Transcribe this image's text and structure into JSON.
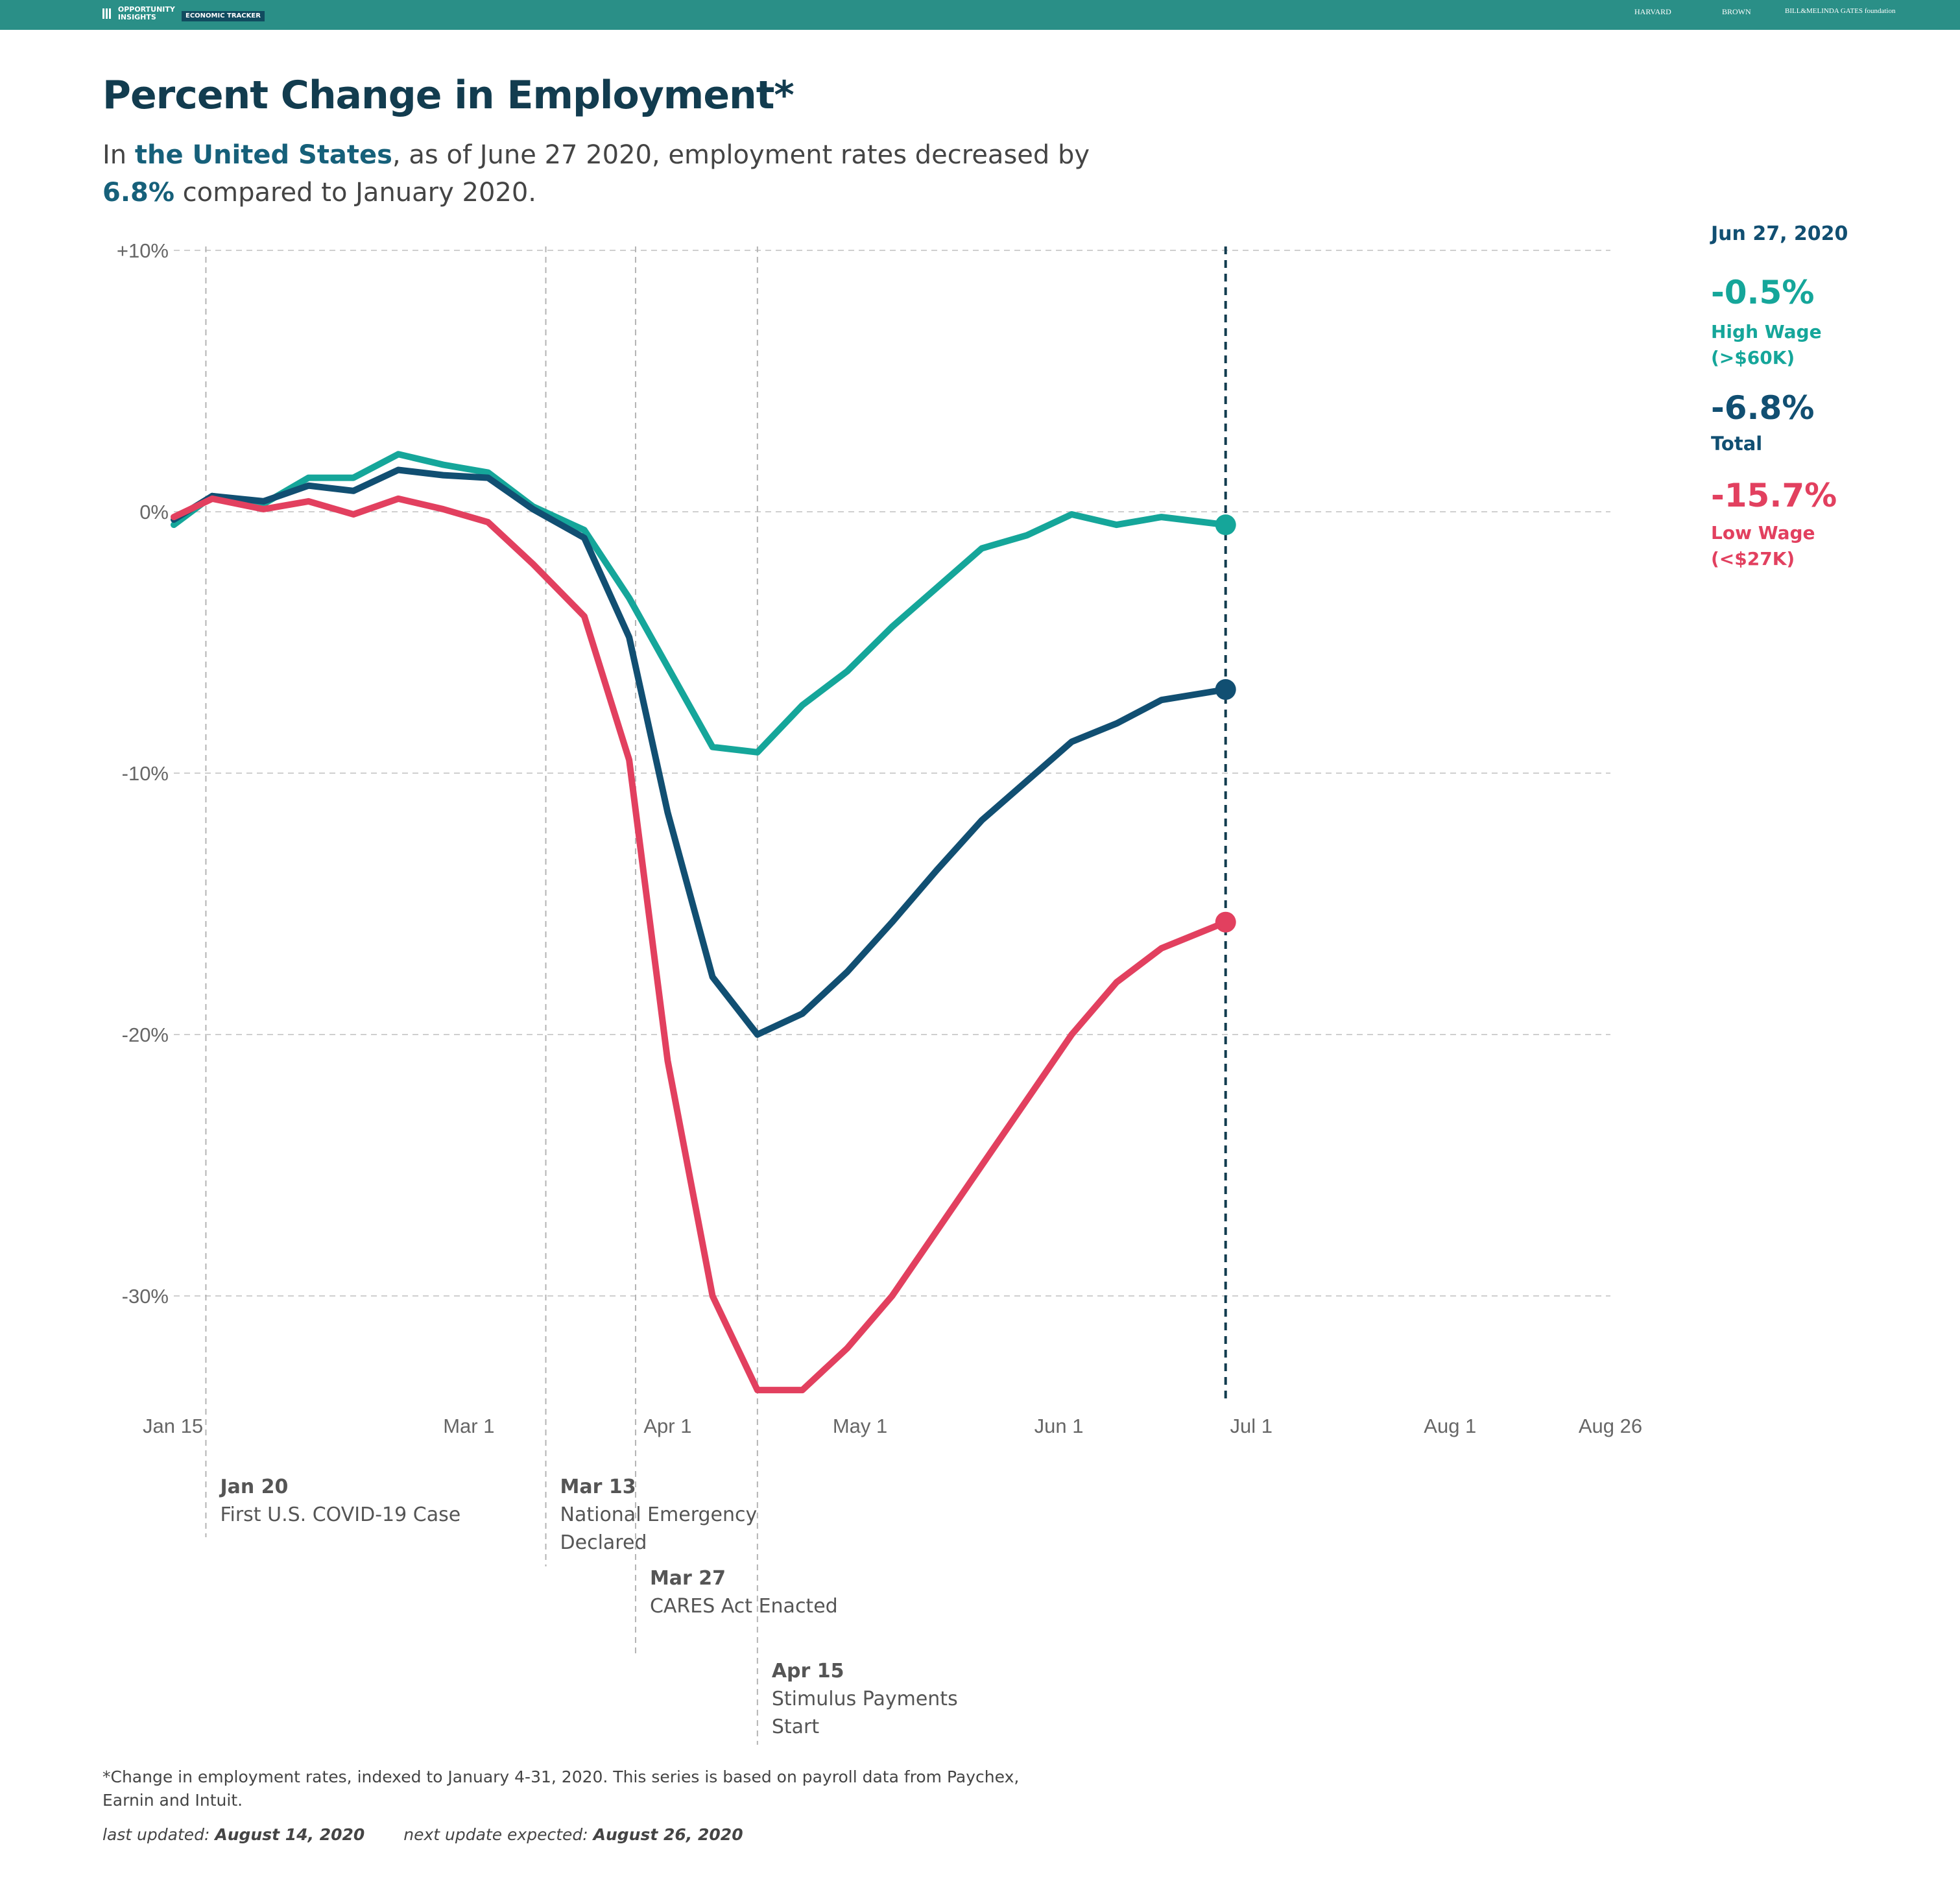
{
  "header": {
    "brand_line1": "OPPORTUNITY",
    "brand_line2": "INSIGHTS",
    "tag": "ECONOMIC TRACKER",
    "partners": [
      "HARVARD",
      "BROWN",
      "BILL&MELINDA GATES foundation"
    ]
  },
  "title": "Percent Change in Employment*",
  "subtitle": {
    "p1": "In ",
    "region": "the United States",
    "p2": ", as of June 27 2020, employment rates decreased by ",
    "value": "6.8%",
    "p3": " compared to January 2020."
  },
  "side": {
    "date": "Jun 27, 2020",
    "high_value": "-0.5%",
    "high_l1": "High Wage",
    "high_l2": "(>$60K)",
    "total_value": "-6.8%",
    "total_label": "Total",
    "low_value": "-15.7%",
    "low_l1": "Low Wage",
    "low_l2": "(<$27K)"
  },
  "footnote": "*Change in employment rates, indexed to January 4-31, 2020. This series is based on payroll data from Paychex, Earnin and Intuit.",
  "updated": {
    "last_label": "last updated: ",
    "last_date": "August 14, 2020",
    "next_label": "next update expected: ",
    "next_date": "August 26, 2020"
  },
  "colors": {
    "high": "#15a69a",
    "total": "#114f72",
    "low": "#e2405f",
    "dark": "#123c4f"
  },
  "chart_data": {
    "type": "line",
    "x_start": "2020-01-15",
    "x_end": "2020-08-26",
    "ylim": [
      -34,
      10
    ],
    "yticks": [
      10,
      0,
      -10,
      -20,
      -30
    ],
    "ytick_labels": [
      "+10%",
      "0%",
      "-10%",
      "-20%",
      "-30%"
    ],
    "xticks": [
      {
        "date": "2020-01-15",
        "label": "Jan 15"
      },
      {
        "date": "2020-03-01",
        "label": "Mar 1"
      },
      {
        "date": "2020-04-01",
        "label": "Apr 1"
      },
      {
        "date": "2020-05-01",
        "label": "May 1"
      },
      {
        "date": "2020-06-01",
        "label": "Jun 1"
      },
      {
        "date": "2020-07-01",
        "label": "Jul 1"
      },
      {
        "date": "2020-08-01",
        "label": "Aug 1"
      },
      {
        "date": "2020-08-26",
        "label": "Aug 26"
      }
    ],
    "events": [
      {
        "date": "2020-01-20",
        "title": "Jan 20",
        "lines": [
          "First U.S. COVID-19 Case"
        ]
      },
      {
        "date": "2020-03-13",
        "title": "Mar 13",
        "lines": [
          "National Emergency",
          "Declared"
        ]
      },
      {
        "date": "2020-03-27",
        "title": "Mar 27",
        "lines": [
          "CARES Act Enacted"
        ]
      },
      {
        "date": "2020-04-15",
        "title": "Apr 15",
        "lines": [
          "Stimulus Payments",
          "Start"
        ]
      }
    ],
    "current_date": "2020-06-27",
    "series": [
      {
        "key": "high",
        "x": [
          "2020-01-15",
          "2020-01-21",
          "2020-01-29",
          "2020-02-05",
          "2020-02-12",
          "2020-02-19",
          "2020-02-26",
          "2020-03-04",
          "2020-03-11",
          "2020-03-19",
          "2020-03-26",
          "2020-04-08",
          "2020-04-15",
          "2020-04-22",
          "2020-04-29",
          "2020-05-06",
          "2020-05-13",
          "2020-05-20",
          "2020-05-27",
          "2020-06-03",
          "2020-06-10",
          "2020-06-17",
          "2020-06-27"
        ],
        "values": [
          -0.5,
          0.6,
          0.3,
          1.3,
          1.3,
          2.2,
          1.8,
          1.5,
          0.2,
          -0.7,
          -3.3,
          -9.0,
          -9.2,
          -7.4,
          -6.1,
          -4.4,
          -2.9,
          -1.4,
          -0.9,
          -0.1,
          -0.5,
          -0.2,
          -0.5
        ]
      },
      {
        "key": "total",
        "x": [
          "2020-01-15",
          "2020-01-21",
          "2020-01-29",
          "2020-02-05",
          "2020-02-12",
          "2020-02-19",
          "2020-02-26",
          "2020-03-04",
          "2020-03-11",
          "2020-03-19",
          "2020-03-26",
          "2020-04-01",
          "2020-04-08",
          "2020-04-15",
          "2020-04-22",
          "2020-04-29",
          "2020-05-06",
          "2020-05-13",
          "2020-05-20",
          "2020-05-27",
          "2020-06-03",
          "2020-06-10",
          "2020-06-17",
          "2020-06-27"
        ],
        "values": [
          -0.3,
          0.6,
          0.4,
          1.0,
          0.8,
          1.6,
          1.4,
          1.3,
          0.1,
          -1.0,
          -4.8,
          -11.5,
          -17.8,
          -20.0,
          -19.2,
          -17.6,
          -15.7,
          -13.7,
          -11.8,
          -10.3,
          -8.8,
          -8.1,
          -7.2,
          -6.8
        ]
      },
      {
        "key": "low",
        "x": [
          "2020-01-15",
          "2020-01-21",
          "2020-01-29",
          "2020-02-05",
          "2020-02-12",
          "2020-02-19",
          "2020-02-26",
          "2020-03-04",
          "2020-03-11",
          "2020-03-19",
          "2020-03-26",
          "2020-04-01",
          "2020-04-08",
          "2020-04-15",
          "2020-04-22",
          "2020-04-29",
          "2020-05-06",
          "2020-05-13",
          "2020-05-20",
          "2020-05-27",
          "2020-06-03",
          "2020-06-10",
          "2020-06-17",
          "2020-06-27"
        ],
        "values": [
          -0.2,
          0.5,
          0.1,
          0.4,
          -0.1,
          0.5,
          0.1,
          -0.4,
          -2.0,
          -4.0,
          -9.5,
          -21.0,
          -30.0,
          -33.6,
          -33.6,
          -32.0,
          -30.0,
          -27.5,
          -25.0,
          -22.5,
          -20.0,
          -18.0,
          -16.7,
          -15.7
        ]
      }
    ]
  }
}
